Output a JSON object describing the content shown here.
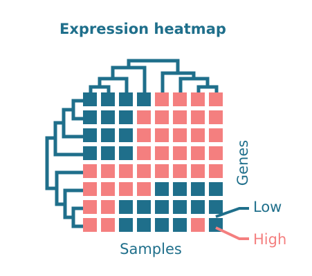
{
  "title": "Expression heatmap",
  "x_label": "Samples",
  "y_label": "Genes",
  "legend": {
    "low_label": "Low",
    "high_label": "High"
  },
  "colors": {
    "low": "#1f6f8b",
    "high": "#f47f7f",
    "text": "#1f6f8b",
    "high_text": "#f47f7f"
  },
  "matrix": {
    "rows": 8,
    "cols": 8,
    "values": [
      [
        "L",
        "L",
        "L",
        "L",
        "H",
        "H",
        "H",
        "H"
      ],
      [
        "L",
        "L",
        "L",
        "H",
        "H",
        "H",
        "H",
        "H"
      ],
      [
        "L",
        "L",
        "L",
        "H",
        "H",
        "H",
        "H",
        "H"
      ],
      [
        "L",
        "L",
        "L",
        "H",
        "H",
        "H",
        "H",
        "H"
      ],
      [
        "H",
        "H",
        "H",
        "H",
        "H",
        "H",
        "H",
        "H"
      ],
      [
        "H",
        "H",
        "H",
        "H",
        "L",
        "L",
        "L",
        "L"
      ],
      [
        "H",
        "H",
        "L",
        "L",
        "L",
        "L",
        "L",
        "L"
      ],
      [
        "H",
        "H",
        "L",
        "L",
        "L",
        "L",
        "H",
        "L"
      ]
    ]
  }
}
